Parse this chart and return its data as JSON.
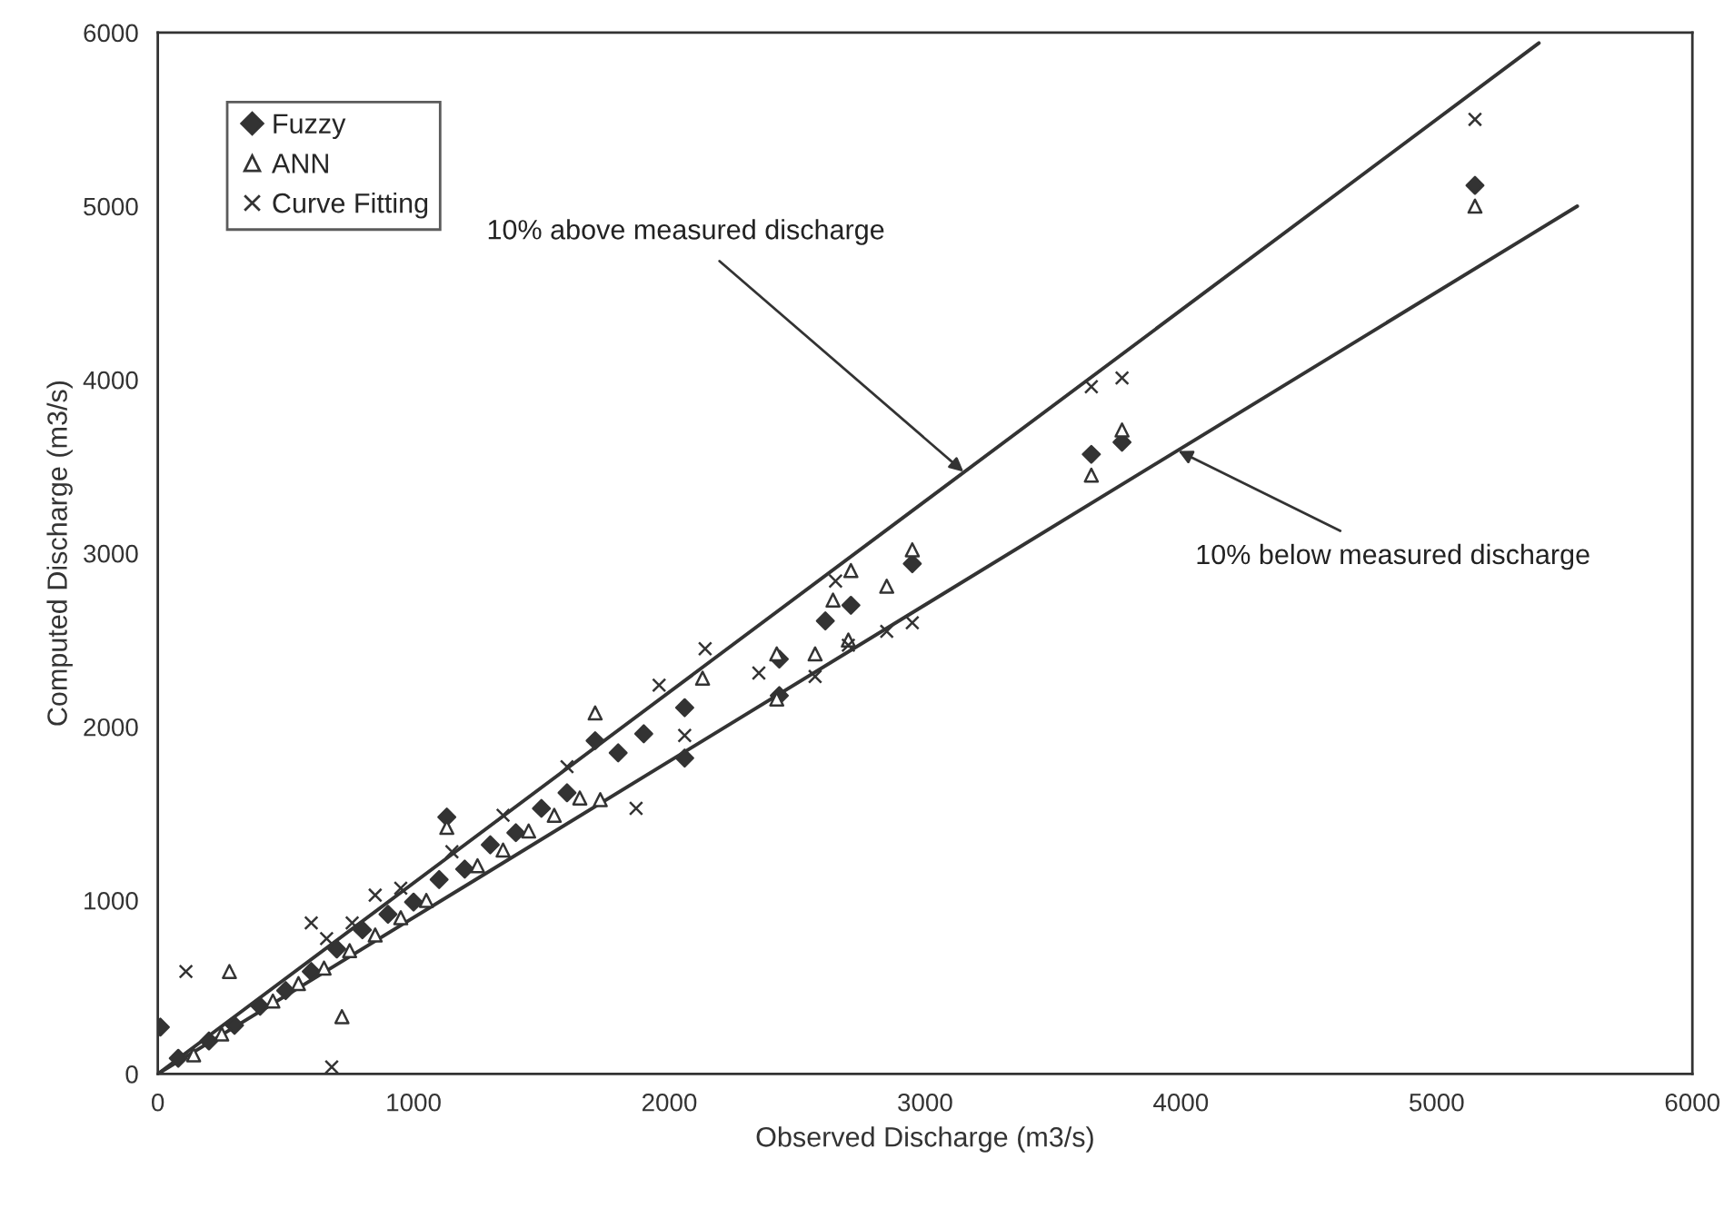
{
  "chart_data": {
    "type": "scatter",
    "xlabel": "Observed Discharge (m3/s)",
    "ylabel": "Computed Discharge (m3/s)",
    "xlim": [
      0,
      6000
    ],
    "ylim": [
      0,
      6000
    ],
    "xticks": [
      0,
      1000,
      2000,
      3000,
      4000,
      5000,
      6000
    ],
    "yticks": [
      0,
      1000,
      2000,
      3000,
      4000,
      5000,
      6000
    ],
    "grid": false,
    "legend": "top left",
    "series": [
      {
        "name": "Fuzzy",
        "color": "#333333",
        "marker": "diamond",
        "x": [
          10,
          80,
          200,
          300,
          400,
          500,
          600,
          700,
          800,
          900,
          1000,
          1100,
          1130,
          1200,
          1300,
          1400,
          1500,
          1600,
          1710,
          1800,
          1900,
          2060,
          2060,
          2430,
          2430,
          2610,
          2710,
          2950,
          3650,
          3770,
          5150
        ],
        "values": [
          270,
          90,
          190,
          280,
          390,
          480,
          590,
          720,
          830,
          920,
          990,
          1120,
          1480,
          1180,
          1320,
          1390,
          1530,
          1620,
          1920,
          1850,
          1960,
          2110,
          1820,
          2390,
          2180,
          2610,
          2700,
          2940,
          3570,
          3640,
          5120
        ]
      },
      {
        "name": "ANN",
        "color": "#333333",
        "marker": "triangle",
        "x": [
          140,
          280,
          250,
          450,
          550,
          650,
          720,
          750,
          850,
          950,
          1050,
          1130,
          1250,
          1350,
          1450,
          1550,
          1650,
          1710,
          1730,
          2130,
          2420,
          2420,
          2570,
          2640,
          2700,
          2710,
          2850,
          2950,
          3650,
          3770,
          5150
        ],
        "values": [
          110,
          590,
          230,
          420,
          520,
          610,
          330,
          710,
          800,
          900,
          1000,
          1420,
          1200,
          1290,
          1400,
          1490,
          1590,
          2080,
          1580,
          2280,
          2420,
          2160,
          2420,
          2730,
          2500,
          2900,
          2810,
          3020,
          3450,
          3710,
          5000
        ]
      },
      {
        "name": "Curve Fitting",
        "color": "#333333",
        "marker": "cross",
        "x": [
          110,
          600,
          680,
          660,
          850,
          760,
          950,
          1150,
          1350,
          1600,
          1870,
          1960,
          2060,
          2140,
          2350,
          2570,
          2650,
          2700,
          2850,
          2950,
          3650,
          3770,
          5150
        ],
        "values": [
          590,
          870,
          40,
          780,
          1030,
          870,
          1070,
          1280,
          1490,
          1770,
          1530,
          2240,
          1950,
          2450,
          2310,
          2290,
          2840,
          2470,
          2550,
          2600,
          3960,
          4010,
          5500
        ]
      },
      {
        "type": "line",
        "color": "#333333",
        "x": [
          0,
          5400
        ],
        "values": [
          0,
          5940
        ]
      },
      {
        "type": "line",
        "color": "#333333",
        "x": [
          0,
          5550
        ],
        "values": [
          0,
          5000
        ]
      }
    ],
    "annotations": [
      {
        "text": "10% above measured discharge",
        "x": 3150,
        "y": 3470
      },
      {
        "text": "10% below measured discharge",
        "x": 3990,
        "y": 3590
      }
    ]
  }
}
